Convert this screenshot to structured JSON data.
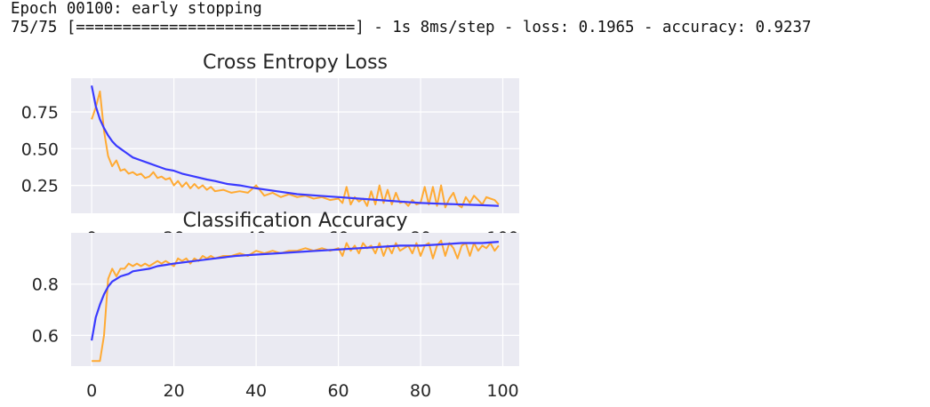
{
  "output_log": [
    "Epoch 00100: early stopping",
    "75/75 [==============================] - 1s 8ms/step - loss: 0.1965 - accuracy: 0.9237"
  ],
  "colors": {
    "train": "#3a3aff",
    "validation": "#ffaa33",
    "panel_background": "#eaeaf2",
    "grid": "#ffffff"
  },
  "chart_data": [
    {
      "type": "line",
      "title": "Cross Entropy Loss",
      "xlim": [
        -5,
        104
      ],
      "ylim": [
        0.06,
        0.98
      ],
      "xticks": [
        0,
        20,
        40,
        60,
        80,
        100
      ],
      "xtick_labels": [
        "0",
        "20",
        "40",
        "60",
        "80",
        "100"
      ],
      "yticks": [
        0.25,
        0.5,
        0.75
      ],
      "ytick_labels": [
        "0.25",
        "0.50",
        "0.75"
      ],
      "grid": true,
      "series": [
        {
          "key": "train",
          "x": [
            0,
            1,
            2,
            3,
            4,
            5,
            6,
            7,
            8,
            9,
            10,
            12,
            14,
            16,
            18,
            20,
            22,
            25,
            28,
            30,
            33,
            36,
            40,
            45,
            50,
            55,
            60,
            65,
            70,
            75,
            80,
            85,
            90,
            95,
            99
          ],
          "values": [
            0.93,
            0.79,
            0.7,
            0.64,
            0.59,
            0.55,
            0.52,
            0.5,
            0.48,
            0.46,
            0.44,
            0.42,
            0.4,
            0.38,
            0.36,
            0.35,
            0.33,
            0.31,
            0.29,
            0.28,
            0.26,
            0.25,
            0.23,
            0.21,
            0.19,
            0.18,
            0.17,
            0.16,
            0.15,
            0.14,
            0.13,
            0.125,
            0.12,
            0.115,
            0.11
          ]
        },
        {
          "key": "validation",
          "x": [
            0,
            1,
            2,
            3,
            4,
            5,
            6,
            7,
            8,
            9,
            10,
            11,
            12,
            13,
            14,
            15,
            16,
            17,
            18,
            19,
            20,
            21,
            22,
            23,
            24,
            25,
            26,
            27,
            28,
            29,
            30,
            32,
            34,
            36,
            38,
            40,
            42,
            44,
            46,
            48,
            50,
            52,
            54,
            56,
            58,
            60,
            61,
            62,
            63,
            64,
            65,
            66,
            67,
            68,
            69,
            70,
            71,
            72,
            73,
            74,
            75,
            76,
            77,
            78,
            79,
            80,
            81,
            82,
            83,
            84,
            85,
            86,
            87,
            88,
            89,
            90,
            91,
            92,
            93,
            94,
            95,
            96,
            97,
            98,
            99
          ],
          "values": [
            0.7,
            0.78,
            0.89,
            0.62,
            0.45,
            0.38,
            0.42,
            0.35,
            0.36,
            0.33,
            0.34,
            0.32,
            0.33,
            0.3,
            0.31,
            0.34,
            0.3,
            0.31,
            0.29,
            0.3,
            0.25,
            0.28,
            0.24,
            0.27,
            0.23,
            0.26,
            0.23,
            0.25,
            0.22,
            0.24,
            0.21,
            0.22,
            0.2,
            0.21,
            0.2,
            0.25,
            0.18,
            0.2,
            0.17,
            0.19,
            0.17,
            0.18,
            0.16,
            0.17,
            0.15,
            0.16,
            0.13,
            0.24,
            0.12,
            0.17,
            0.14,
            0.16,
            0.11,
            0.21,
            0.12,
            0.25,
            0.13,
            0.22,
            0.12,
            0.2,
            0.13,
            0.14,
            0.11,
            0.15,
            0.12,
            0.13,
            0.24,
            0.12,
            0.24,
            0.11,
            0.25,
            0.1,
            0.16,
            0.2,
            0.12,
            0.1,
            0.17,
            0.13,
            0.18,
            0.15,
            0.12,
            0.17,
            0.16,
            0.15,
            0.12
          ]
        }
      ]
    },
    {
      "type": "line",
      "title": "Classification Accuracy",
      "xlim": [
        -5,
        104
      ],
      "ylim": [
        0.48,
        1.0
      ],
      "xticks": [
        0,
        20,
        40,
        60,
        80,
        100
      ],
      "xtick_labels": [
        "0",
        "20",
        "40",
        "60",
        "80",
        "100"
      ],
      "yticks": [
        0.6,
        0.8
      ],
      "ytick_labels": [
        "0.6",
        "0.8"
      ],
      "grid": true,
      "series": [
        {
          "key": "train",
          "x": [
            0,
            1,
            2,
            3,
            4,
            5,
            6,
            7,
            8,
            9,
            10,
            12,
            14,
            16,
            18,
            20,
            25,
            30,
            35,
            40,
            45,
            50,
            55,
            60,
            65,
            70,
            75,
            80,
            85,
            90,
            95,
            99
          ],
          "values": [
            0.58,
            0.67,
            0.72,
            0.76,
            0.79,
            0.81,
            0.82,
            0.83,
            0.835,
            0.84,
            0.85,
            0.855,
            0.86,
            0.87,
            0.875,
            0.88,
            0.89,
            0.9,
            0.91,
            0.915,
            0.92,
            0.925,
            0.93,
            0.935,
            0.94,
            0.945,
            0.95,
            0.95,
            0.955,
            0.96,
            0.96,
            0.965
          ]
        },
        {
          "key": "validation",
          "x": [
            0,
            1,
            2,
            3,
            4,
            5,
            6,
            7,
            8,
            9,
            10,
            11,
            12,
            13,
            14,
            15,
            16,
            17,
            18,
            19,
            20,
            21,
            22,
            23,
            24,
            25,
            26,
            27,
            28,
            29,
            30,
            32,
            34,
            36,
            38,
            40,
            42,
            44,
            46,
            48,
            50,
            52,
            54,
            56,
            58,
            60,
            61,
            62,
            63,
            64,
            65,
            66,
            67,
            68,
            69,
            70,
            71,
            72,
            73,
            74,
            75,
            76,
            77,
            78,
            79,
            80,
            81,
            82,
            83,
            84,
            85,
            86,
            87,
            88,
            89,
            90,
            91,
            92,
            93,
            94,
            95,
            96,
            97,
            98,
            99
          ],
          "values": [
            0.5,
            0.5,
            0.5,
            0.6,
            0.82,
            0.86,
            0.83,
            0.86,
            0.86,
            0.88,
            0.87,
            0.88,
            0.87,
            0.88,
            0.87,
            0.88,
            0.89,
            0.88,
            0.89,
            0.88,
            0.87,
            0.9,
            0.89,
            0.9,
            0.88,
            0.9,
            0.89,
            0.91,
            0.9,
            0.91,
            0.9,
            0.91,
            0.91,
            0.92,
            0.91,
            0.93,
            0.92,
            0.93,
            0.92,
            0.93,
            0.93,
            0.94,
            0.93,
            0.94,
            0.93,
            0.94,
            0.91,
            0.96,
            0.93,
            0.95,
            0.92,
            0.96,
            0.94,
            0.95,
            0.92,
            0.96,
            0.91,
            0.95,
            0.92,
            0.96,
            0.93,
            0.94,
            0.95,
            0.92,
            0.96,
            0.91,
            0.95,
            0.96,
            0.9,
            0.95,
            0.97,
            0.91,
            0.96,
            0.94,
            0.9,
            0.95,
            0.96,
            0.91,
            0.96,
            0.93,
            0.95,
            0.94,
            0.96,
            0.93,
            0.95
          ]
        }
      ]
    }
  ]
}
